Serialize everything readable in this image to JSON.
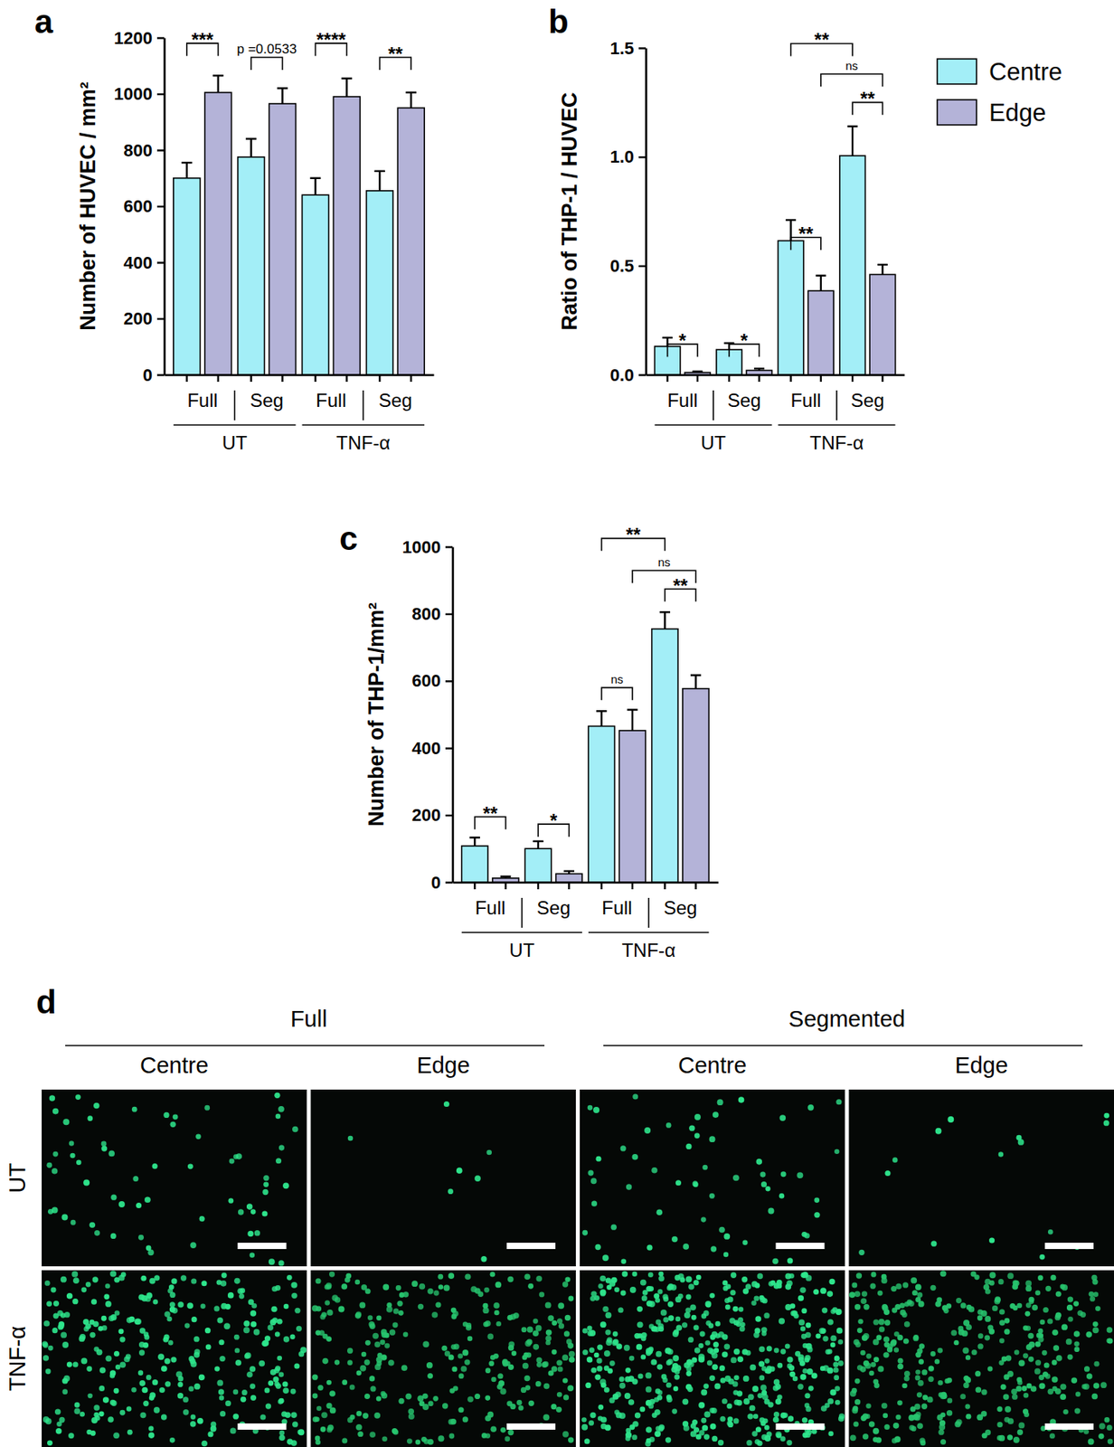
{
  "chart_data": [
    {
      "panel": "a",
      "type": "bar",
      "ylabel": "Number of HUVEC / mm²",
      "categories": [
        "Full",
        "Seg",
        "Full",
        "Seg"
      ],
      "category_groups": [
        {
          "label": "UT",
          "from": 0,
          "to": 1
        },
        {
          "label": "TNF-α",
          "from": 2,
          "to": 3
        }
      ],
      "series": [
        {
          "color": "#a3eef7",
          "values": [
            700,
            775,
            640,
            655
          ],
          "errors": [
            55,
            65,
            60,
            70
          ]
        },
        {
          "color": "#b4b3d8",
          "values": [
            1005,
            965,
            990,
            950
          ],
          "errors": [
            60,
            55,
            65,
            55
          ]
        }
      ],
      "ylim": [
        0,
        1200
      ],
      "yticks": [
        0,
        200,
        400,
        600,
        800,
        1000,
        1200
      ],
      "annotations": [
        {
          "label": "***",
          "from": [
            0,
            0
          ],
          "to": [
            1,
            0
          ],
          "y": 1180
        },
        {
          "label": "p =0.0533",
          "from": [
            0,
            1
          ],
          "to": [
            1,
            1
          ],
          "y": 1130
        },
        {
          "label": "****",
          "from": [
            0,
            2
          ],
          "to": [
            1,
            2
          ],
          "y": 1180
        },
        {
          "label": "**",
          "from": [
            0,
            3
          ],
          "to": [
            1,
            3
          ],
          "y": 1130
        }
      ]
    },
    {
      "panel": "b",
      "type": "bar",
      "ylabel": "Ratio of THP-1 / HUVEC",
      "categories": [
        "Full",
        "Seg",
        "Full",
        "Seg"
      ],
      "category_groups": [
        {
          "label": "UT",
          "from": 0,
          "to": 1
        },
        {
          "label": "TNF-α",
          "from": 2,
          "to": 3
        }
      ],
      "series": [
        {
          "name": "Centre",
          "color": "#a3eef7",
          "values": [
            0.13,
            0.115,
            0.615,
            1.005
          ],
          "errors": [
            0.04,
            0.03,
            0.095,
            0.135
          ]
        },
        {
          "name": "Edge",
          "color": "#b4b3d8",
          "values": [
            0.01,
            0.02,
            0.385,
            0.46
          ],
          "errors": [
            0.005,
            0.008,
            0.07,
            0.045
          ]
        }
      ],
      "ylim": [
        0,
        1.5
      ],
      "yticks": [
        {
          "value": 0,
          "label": "0.0"
        },
        0.5,
        {
          "value": 1,
          "label": "1.0"
        },
        1.5
      ],
      "legend": "right",
      "annotations": [
        {
          "label": "*",
          "from": [
            0,
            0
          ],
          "to": [
            1,
            0
          ],
          "y": 0.14
        },
        {
          "label": "*",
          "from": [
            0,
            1
          ],
          "to": [
            1,
            1
          ],
          "y": 0.14
        },
        {
          "label": "**",
          "from": [
            0,
            2
          ],
          "to": [
            1,
            2
          ],
          "y": 0.63
        },
        {
          "label": "**",
          "from": [
            0,
            2
          ],
          "to": [
            0,
            3
          ],
          "y": 1.52
        },
        {
          "label": "ns",
          "from": [
            1,
            2
          ],
          "to": [
            1,
            3
          ],
          "y": 1.38
        },
        {
          "label": "**",
          "from": [
            0,
            3
          ],
          "to": [
            1,
            3
          ],
          "y": 1.25
        }
      ]
    },
    {
      "panel": "c",
      "type": "bar",
      "ylabel": "Number of THP-1/mm²",
      "categories": [
        "Full",
        "Seg",
        "Full",
        "Seg"
      ],
      "category_groups": [
        {
          "label": "UT",
          "from": 0,
          "to": 1
        },
        {
          "label": "TNF-α",
          "from": 2,
          "to": 3
        }
      ],
      "series": [
        {
          "color": "#a3eef7",
          "values": [
            108,
            100,
            465,
            755
          ],
          "errors": [
            25,
            22,
            45,
            50
          ]
        },
        {
          "color": "#b4b3d8",
          "values": [
            12,
            25,
            452,
            577
          ],
          "errors": [
            5,
            8,
            62,
            40
          ]
        }
      ],
      "ylim": [
        0,
        1000
      ],
      "yticks": [
        0,
        200,
        400,
        600,
        800,
        1000
      ],
      "annotations": [
        {
          "label": "**",
          "from": [
            0,
            0
          ],
          "to": [
            1,
            0
          ],
          "y": 195
        },
        {
          "label": "*",
          "from": [
            0,
            1
          ],
          "to": [
            1,
            1
          ],
          "y": 173
        },
        {
          "label": "ns",
          "from": [
            0,
            2
          ],
          "to": [
            1,
            2
          ],
          "y": 580
        },
        {
          "label": "**",
          "from": [
            0,
            2
          ],
          "to": [
            0,
            3
          ],
          "y": 1025
        },
        {
          "label": "ns",
          "from": [
            1,
            2
          ],
          "to": [
            1,
            3
          ],
          "y": 929
        },
        {
          "label": "**",
          "from": [
            0,
            3
          ],
          "to": [
            1,
            3
          ],
          "y": 874
        }
      ]
    }
  ],
  "micrographs": {
    "panel": "d",
    "column_groups": [
      {
        "label": "Full",
        "columns": [
          "Centre",
          "Edge"
        ]
      },
      {
        "label": "Segmented",
        "columns": [
          "Centre",
          "Edge"
        ]
      }
    ],
    "rows": [
      "UT",
      "TNF-α"
    ]
  }
}
